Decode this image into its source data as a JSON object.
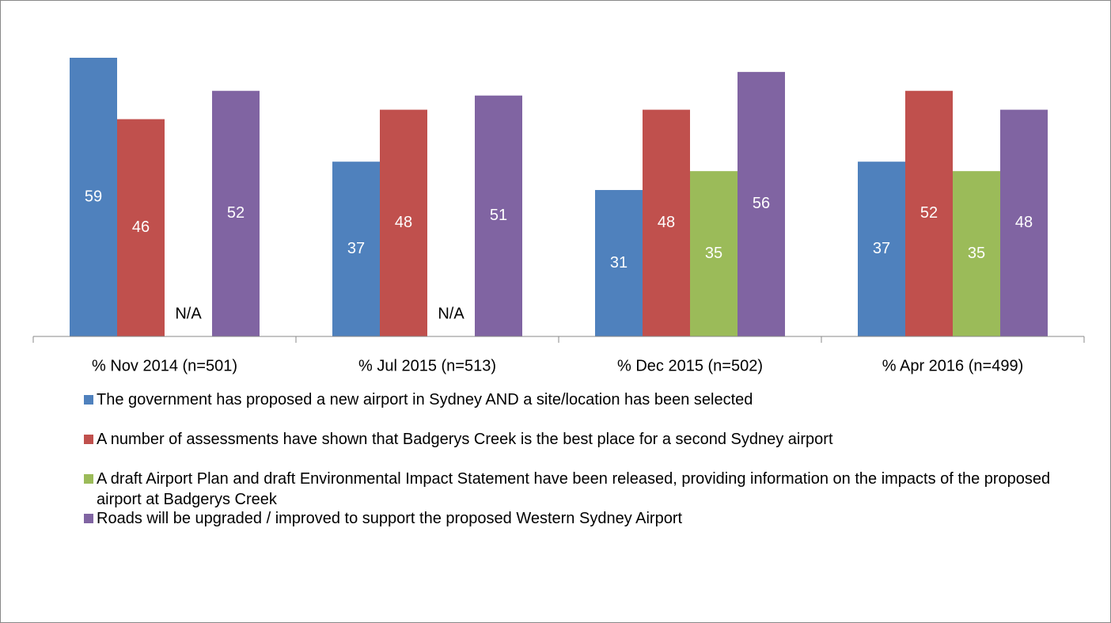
{
  "chart_data": {
    "type": "bar",
    "categories": [
      "%  Nov 2014 (n=501)",
      "%  Jul 2015 (n=513)",
      "%  Dec 2015 (n=502)",
      "%  Apr 2016 (n=499)"
    ],
    "series": [
      {
        "name": "The government has proposed a new airport in Sydney AND a site/location has been selected",
        "color": "#4f81bd",
        "values": [
          59,
          37,
          31,
          37
        ]
      },
      {
        "name": "A number of assessments have shown that Badgerys Creek is the best place for a second Sydney airport",
        "color": "#c0504d",
        "values": [
          46,
          48,
          48,
          52
        ]
      },
      {
        "name": "A draft Airport Plan and draft Environmental Impact Statement have been released, providing information on the impacts of the proposed airport at Badgerys Creek",
        "color": "#9bbb59",
        "values": [
          null,
          null,
          35,
          35
        ],
        "value_labels": [
          "N/A",
          "N/A",
          "35",
          "35"
        ]
      },
      {
        "name": "Roads will be upgraded / improved to support the proposed Western Sydney Airport",
        "color": "#8064a2",
        "values": [
          52,
          51,
          56,
          48
        ]
      }
    ],
    "ylim": [
      0,
      60
    ]
  }
}
